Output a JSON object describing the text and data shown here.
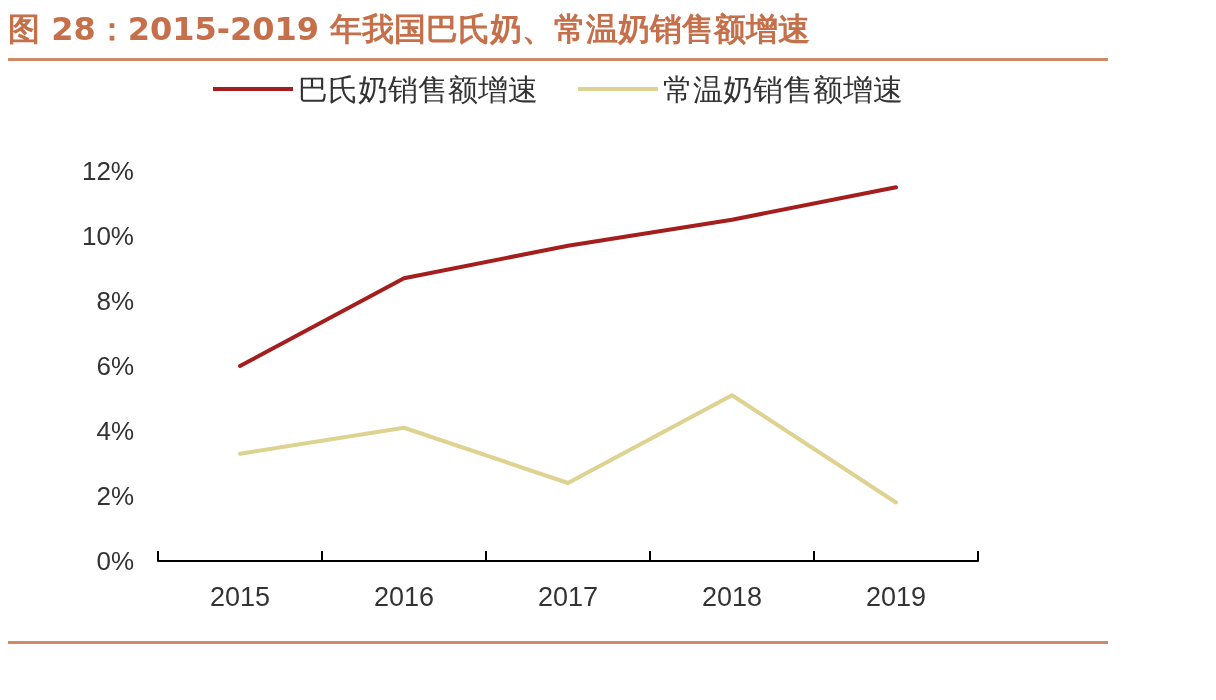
{
  "chart_data": {
    "type": "line",
    "title": "图 28：2015-2019 年我国巴氏奶、常温奶销售额增速",
    "categories": [
      "2015",
      "2016",
      "2017",
      "2018",
      "2019"
    ],
    "series": [
      {
        "name": "巴氏奶销售额增速",
        "color": "#a51e1e",
        "values": [
          6.0,
          8.7,
          9.7,
          10.5,
          11.5
        ]
      },
      {
        "name": "常温奶销售额增速",
        "color": "#ddd28f",
        "values": [
          3.3,
          4.1,
          2.4,
          5.1,
          1.8
        ]
      }
    ],
    "ylim": [
      0,
      12
    ],
    "yticks": [
      {
        "value": 0,
        "label": "0%"
      },
      {
        "value": 2,
        "label": "2%"
      },
      {
        "value": 4,
        "label": "4%"
      },
      {
        "value": 6,
        "label": "6%"
      },
      {
        "value": 8,
        "label": "8%"
      },
      {
        "value": 10,
        "label": "10%"
      },
      {
        "value": 12,
        "label": "12%"
      }
    ],
    "grid": false,
    "legend": "top",
    "marker": "none",
    "line_style": "solid"
  }
}
